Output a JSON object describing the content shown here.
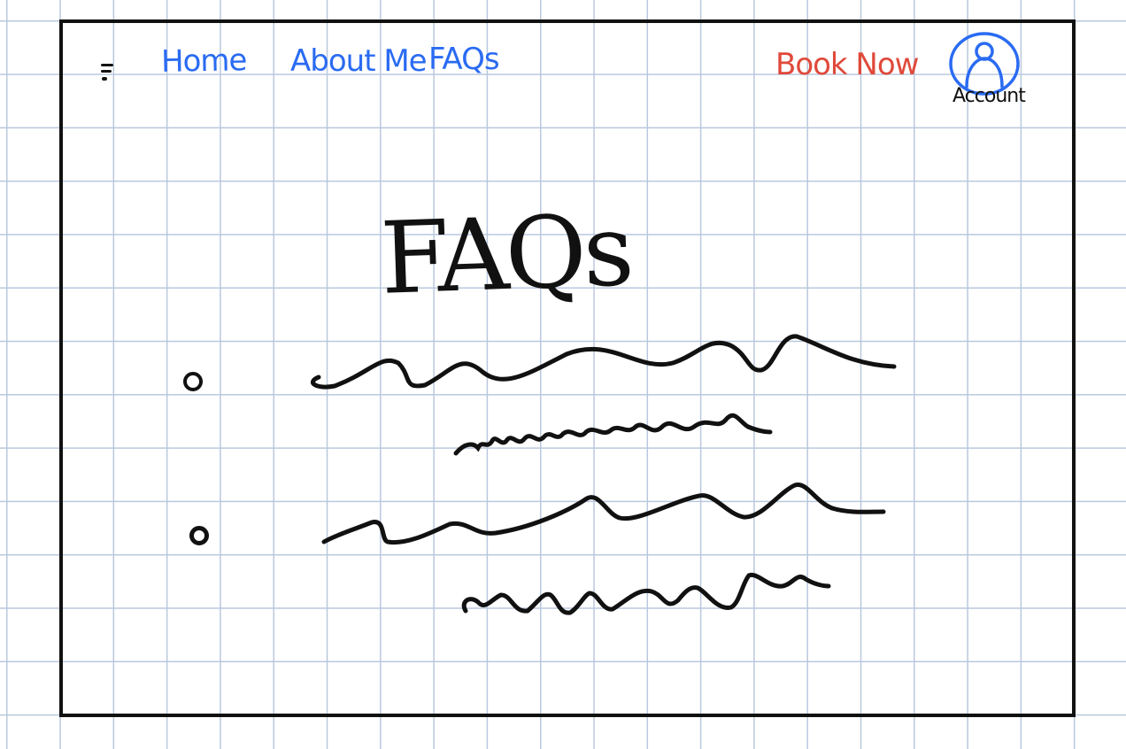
{
  "nav": {
    "menu_icon": "menu-icon",
    "links": [
      {
        "label": "Home"
      },
      {
        "label": "About Me"
      },
      {
        "label": "FAQs"
      }
    ],
    "cta_label": "Book Now",
    "account_icon": "user-circle-icon",
    "account_label": "Account"
  },
  "page": {
    "title": "FAQs"
  },
  "faqs": [
    {
      "question": "",
      "answer": ""
    },
    {
      "question": "",
      "answer": ""
    }
  ],
  "colors": {
    "nav_link": "#2a6bf2",
    "cta": "#e0493a",
    "ink": "#111111",
    "grid": "#b9c8dd"
  }
}
